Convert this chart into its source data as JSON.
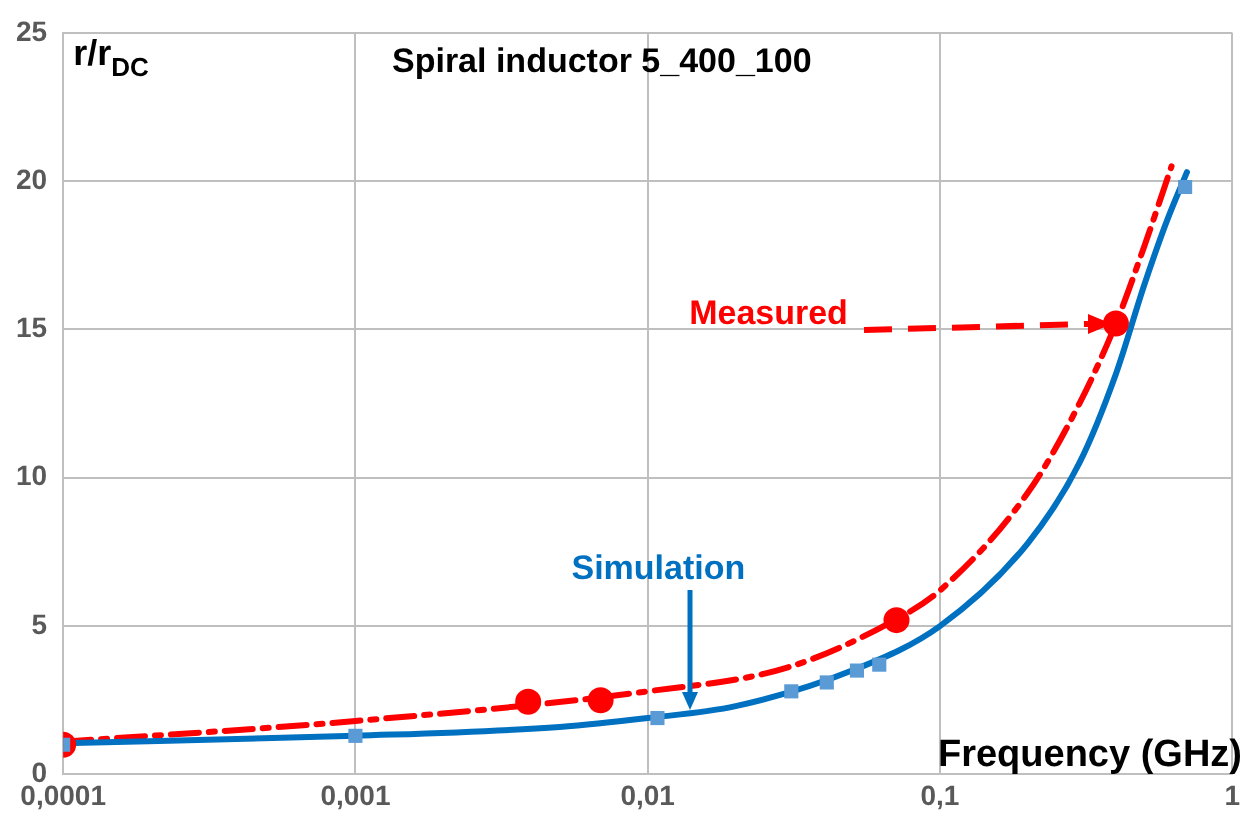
{
  "chart_data": {
    "type": "line",
    "title": "Spiral inductor 5_400_100",
    "xlabel": "Frequency (GHz)",
    "ylabel": "r/r$_{DC}$",
    "log": "x",
    "grid": true,
    "legend": false,
    "xlim": [
      0.0001,
      1
    ],
    "xticks": [
      {
        "value": 0.0001,
        "label": "0,0001"
      },
      {
        "value": 0.001,
        "label": "0,001"
      },
      {
        "value": 0.01,
        "label": "0,01"
      },
      {
        "value": 0.1,
        "label": "0,1"
      },
      {
        "value": 1,
        "label": "1"
      }
    ],
    "ylim": [
      0,
      25
    ],
    "yticks": [
      0,
      5,
      10,
      15,
      20,
      25
    ],
    "series": [
      {
        "color": "#0070c0",
        "marker": "none",
        "line_style": "solid",
        "x": [
          0.0001,
          0.001,
          0.005,
          0.01,
          0.02,
          0.05,
          0.1,
          0.2,
          0.3,
          0.4,
          0.5,
          0.6,
          0.7
        ],
        "values": [
          1.05,
          1.3,
          1.6,
          1.9,
          2.3,
          3.5,
          5.0,
          7.8,
          10.5,
          13.5,
          16.5,
          18.7,
          20.3
        ]
      },
      {
        "color": "#ff0000",
        "marker": "none",
        "line_style": "dashed",
        "x": [
          0.0001,
          0.001,
          0.01,
          0.03,
          0.07,
          0.1,
          0.2,
          0.3,
          0.4,
          0.5,
          0.62
        ],
        "values": [
          1.1,
          1.8,
          2.8,
          3.6,
          5.2,
          6.2,
          9.5,
          12.5,
          15.2,
          17.8,
          20.5
        ]
      },
      {
        "type": "scatter",
        "color": "#5b9bd5",
        "marker": "square",
        "x": [
          0.0001,
          0.001,
          0.0108,
          0.031,
          0.041,
          0.052,
          0.062,
          0.69
        ],
        "values": [
          1.0,
          1.3,
          1.9,
          2.8,
          3.1,
          3.5,
          3.7,
          19.8
        ]
      },
      {
        "type": "scatter",
        "name": "Measured",
        "color": "#ff0000",
        "marker": "circle",
        "x": [
          0.0001,
          0.0039,
          0.0069,
          0.071,
          0.4
        ],
        "values": [
          1.0,
          2.45,
          2.5,
          5.2,
          15.2
        ]
      }
    ],
    "annotations": [
      {
        "text": "Simulation",
        "x": 0.014,
        "y": 2.2
      }
    ]
  }
}
